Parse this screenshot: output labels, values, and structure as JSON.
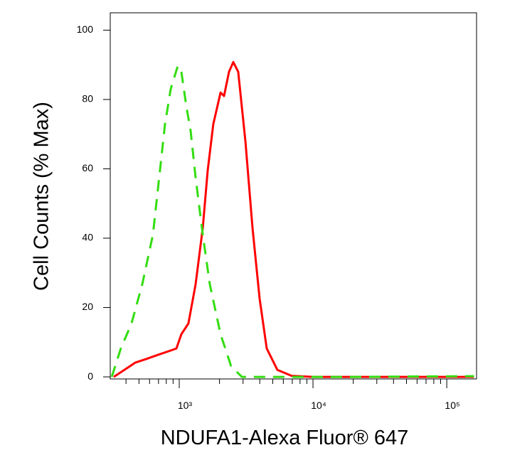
{
  "chart_data": {
    "type": "line",
    "x_label": "NDUFA1-Alexa Fluor® 647",
    "y_label": "Cell Counts (% Max)",
    "xscale": "log",
    "xlim": [
      305,
      167000
    ],
    "ylim": [
      -0.6,
      105
    ],
    "xticks": [
      {
        "value": 1000,
        "label": "10³"
      },
      {
        "value": 10000,
        "label": "10⁴"
      },
      {
        "value": 100000,
        "label": "10⁵"
      }
    ],
    "xminorticks": [
      400,
      500,
      600,
      700,
      800,
      900,
      2000,
      3000,
      4000,
      5000,
      6000,
      7000,
      8000,
      9000,
      20000,
      30000,
      40000,
      50000,
      60000,
      70000,
      80000,
      90000
    ],
    "yticks": [
      0,
      20,
      40,
      60,
      80,
      100
    ],
    "series": [
      {
        "color": "#ff0000",
        "dash": false,
        "x": [
          324,
          389,
          468,
          562,
          676,
          863,
          952,
          1037,
          1172,
          1325,
          1500,
          1633,
          1799,
          2036,
          2163,
          2356,
          2535,
          2761,
          3126,
          3532,
          3990,
          4508,
          5420,
          6918,
          10000,
          160000
        ],
        "values": [
          0,
          2,
          4.1,
          5.1,
          6.2,
          7.6,
          8.2,
          12.3,
          15.4,
          26.7,
          43,
          59.5,
          72.9,
          82,
          81,
          88,
          90.8,
          88,
          67.8,
          43,
          22.6,
          8.2,
          2,
          0.3,
          0,
          0
        ]
      },
      {
        "color": "#33dd11",
        "dash": true,
        "x": [
          313,
          366,
          440,
          529,
          636,
          718,
          783,
          863,
          976,
          1037,
          1130,
          1217,
          1325,
          1500,
          1693,
          2036,
          2443,
          2938,
          5000,
          20000,
          160000
        ],
        "values": [
          0,
          8.2,
          15.4,
          26.7,
          41,
          59.5,
          72.9,
          83,
          89.7,
          88,
          78,
          71,
          57.5,
          41,
          26.7,
          12.3,
          3.1,
          0,
          0,
          0,
          0.2
        ]
      }
    ]
  }
}
